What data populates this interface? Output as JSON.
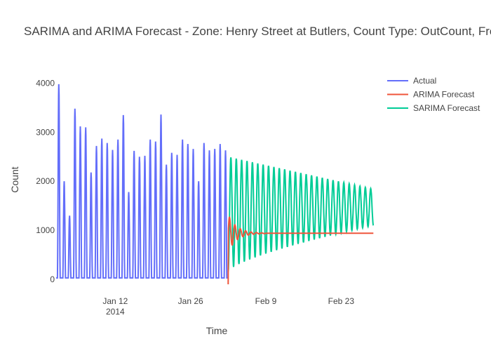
{
  "chart_data": {
    "type": "line",
    "title": "SARIMA and ARIMA Forecast - Zone: Henry Street at Butlers, Count Type: OutCount, Freq: H",
    "xlabel": "Time",
    "ylabel": "Count",
    "x_range": [
      "2014-01-01",
      "2014-03-02"
    ],
    "y_range": [
      -100,
      4150
    ],
    "x_ticks": [
      {
        "date": "2014-01-12",
        "label": "Jan 12",
        "sublabel": "2014"
      },
      {
        "date": "2014-01-26",
        "label": "Jan 26",
        "sublabel": ""
      },
      {
        "date": "2014-02-09",
        "label": "Feb 9",
        "sublabel": ""
      },
      {
        "date": "2014-02-23",
        "label": "Feb 23",
        "sublabel": ""
      }
    ],
    "y_ticks": [
      0,
      1000,
      2000,
      3000,
      4000
    ],
    "grid": false,
    "legend_position": "top-right",
    "series": [
      {
        "name": "Actual",
        "color": "#636efa",
        "period": "daily",
        "start": "2014-01-01",
        "end": "2014-02-02",
        "daily_peaks": [
          {
            "date": "2014-01-01",
            "value": 3980
          },
          {
            "date": "2014-01-02",
            "value": 2000
          },
          {
            "date": "2014-01-03",
            "value": 1300
          },
          {
            "date": "2014-01-04",
            "value": 3480
          },
          {
            "date": "2014-01-05",
            "value": 3120
          },
          {
            "date": "2014-01-06",
            "value": 3100
          },
          {
            "date": "2014-01-07",
            "value": 2180
          },
          {
            "date": "2014-01-08",
            "value": 2720
          },
          {
            "date": "2014-01-09",
            "value": 2870
          },
          {
            "date": "2014-01-10",
            "value": 2780
          },
          {
            "date": "2014-01-11",
            "value": 2640
          },
          {
            "date": "2014-01-12",
            "value": 2850
          },
          {
            "date": "2014-01-13",
            "value": 3350
          },
          {
            "date": "2014-01-14",
            "value": 1780
          },
          {
            "date": "2014-01-15",
            "value": 2620
          },
          {
            "date": "2014-01-16",
            "value": 2500
          },
          {
            "date": "2014-01-17",
            "value": 2520
          },
          {
            "date": "2014-01-18",
            "value": 2850
          },
          {
            "date": "2014-01-19",
            "value": 2810
          },
          {
            "date": "2014-01-20",
            "value": 3360
          },
          {
            "date": "2014-01-21",
            "value": 2340
          },
          {
            "date": "2014-01-22",
            "value": 2580
          },
          {
            "date": "2014-01-23",
            "value": 2540
          },
          {
            "date": "2014-01-24",
            "value": 2850
          },
          {
            "date": "2014-01-25",
            "value": 2760
          },
          {
            "date": "2014-01-26",
            "value": 2660
          },
          {
            "date": "2014-01-27",
            "value": 2000
          },
          {
            "date": "2014-01-28",
            "value": 2780
          },
          {
            "date": "2014-01-29",
            "value": 2630
          },
          {
            "date": "2014-01-30",
            "value": 2660
          },
          {
            "date": "2014-01-31",
            "value": 2760
          },
          {
            "date": "2014-02-01",
            "value": 2630
          }
        ],
        "daily_trough": 30
      },
      {
        "name": "ARIMA Forecast",
        "color": "#ef553b",
        "start": "2014-02-02",
        "end": "2014-03-01",
        "start_value": -100,
        "first_peak": 1320,
        "settle_value": 940,
        "settle_date": "2014-02-09"
      },
      {
        "name": "SARIMA Forecast",
        "color": "#00cc96",
        "period": "daily",
        "start": "2014-02-02",
        "end": "2014-03-01",
        "peak_start": 2500,
        "trough_start": 160,
        "peak_end": 1840,
        "trough_end": 1100
      }
    ]
  }
}
